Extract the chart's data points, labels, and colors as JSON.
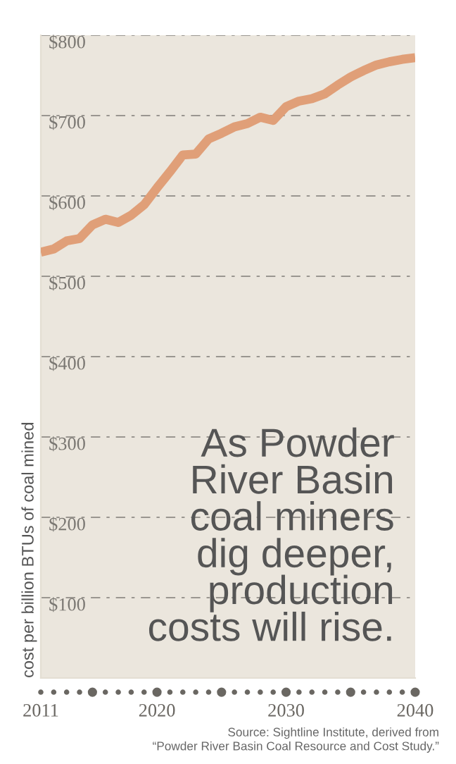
{
  "chart_data": {
    "type": "line",
    "ylabel": "cost per billion BTUs of coal mined",
    "x": [
      2011,
      2012,
      2013,
      2014,
      2015,
      2016,
      2017,
      2018,
      2019,
      2020,
      2021,
      2022,
      2023,
      2024,
      2025,
      2026,
      2027,
      2028,
      2029,
      2030,
      2031,
      2032,
      2033,
      2034,
      2035,
      2036,
      2037,
      2038,
      2039,
      2040
    ],
    "series": [
      {
        "color": "#e09f78",
        "values": [
          530,
          534,
          544,
          547,
          564,
          571,
          567,
          576,
          589,
          610,
          630,
          651,
          652,
          671,
          678,
          686,
          690,
          698,
          694,
          711,
          718,
          721,
          727,
          738,
          748,
          756,
          763,
          767,
          770,
          772
        ]
      }
    ],
    "xlim": [
      2011,
      2040
    ],
    "xticks": [
      2011,
      2020,
      2030,
      2040
    ],
    "ylim": [
      0,
      800
    ],
    "yticks": [
      {
        "value": 100,
        "label": "$100"
      },
      {
        "value": 200,
        "label": "$200"
      },
      {
        "value": 300,
        "label": "$300"
      },
      {
        "value": 400,
        "label": "$400"
      },
      {
        "value": 500,
        "label": "$500"
      },
      {
        "value": 600,
        "label": "$600"
      },
      {
        "value": 700,
        "label": "$700"
      },
      {
        "value": 800,
        "label": "$800"
      }
    ],
    "grid": "y",
    "marker": "none",
    "line_style": "solid",
    "annotations": [
      "As Powder\nRiver Basin\ncoal miners\ndig deeper,\nproduction\ncosts will rise.",
      "Source: Sightline Institute, derived from\n“Powder River Basin Coal Resource and Cost Study.”"
    ]
  }
}
